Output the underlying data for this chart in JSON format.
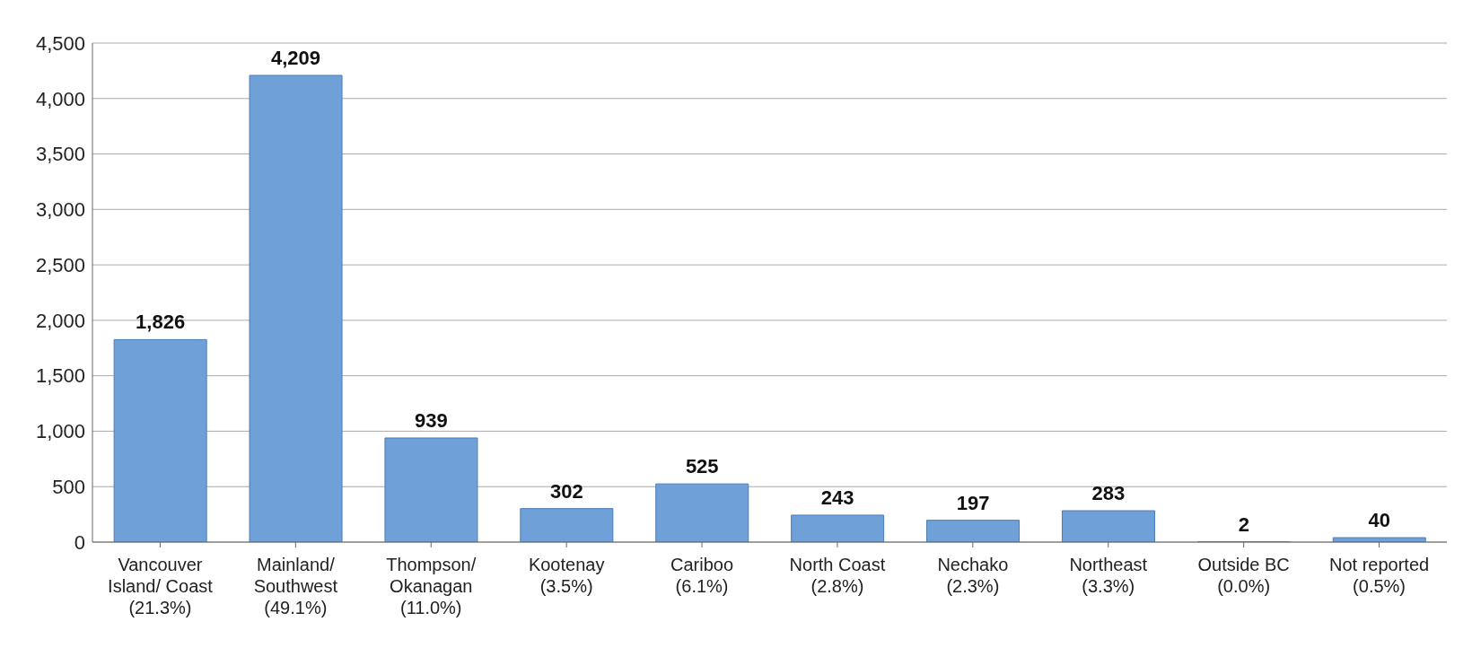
{
  "chart_data": {
    "type": "bar",
    "categories": [
      "Vancouver\nIsland/ Coast\n(21.3%)",
      "Mainland/\nSouthwest\n(49.1%)",
      "Thompson/\nOkanagan\n(11.0%)",
      "Kootenay\n(3.5%)",
      "Cariboo\n(6.1%)",
      "North Coast\n(2.8%)",
      "Nechako\n(2.3%)",
      "Northeast\n(3.3%)",
      "Outside BC\n(0.0%)",
      "Not reported\n(0.5%)"
    ],
    "values": [
      1826,
      4209,
      939,
      302,
      525,
      243,
      197,
      283,
      2,
      40
    ],
    "color": "#6fa0d8",
    "value_labels": [
      "1,826",
      "4,209",
      "939",
      "302",
      "525",
      "243",
      "197",
      "283",
      "2",
      "40"
    ],
    "ylim": [
      0,
      4500
    ],
    "yticks": [
      0,
      500,
      {
        "value": 1000,
        "label": "1,000"
      },
      {
        "value": 1500,
        "label": "1,500"
      },
      {
        "value": 2000,
        "label": "2,000"
      },
      {
        "value": 2500,
        "label": "2,500"
      },
      {
        "value": 3000,
        "label": "3,000"
      },
      {
        "value": 3500,
        "label": "3,500"
      },
      {
        "value": 4000,
        "label": "4,000"
      },
      {
        "value": 4500,
        "label": "4,500"
      }
    ],
    "grid": "y"
  }
}
